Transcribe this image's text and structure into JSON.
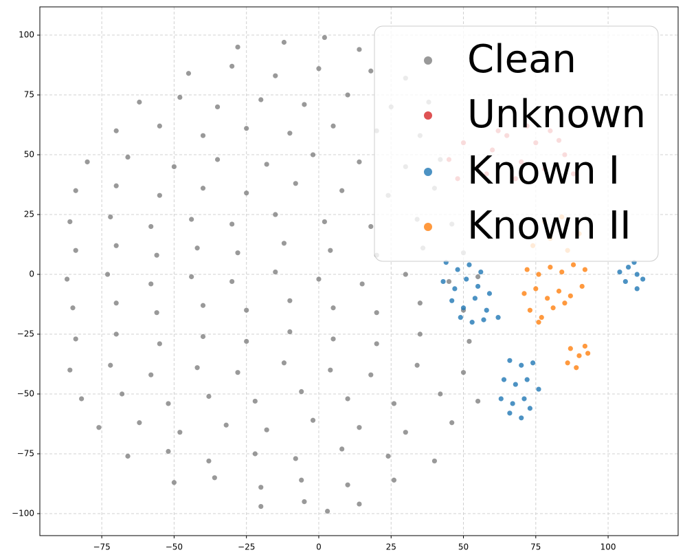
{
  "chart_data": {
    "type": "scatter",
    "xlim": [
      -96.4,
      124.2
    ],
    "ylim": [
      -109.2,
      111.8
    ],
    "xticks": [
      {
        "value": -75,
        "label": "−75"
      },
      {
        "value": -50,
        "label": "−50"
      },
      {
        "value": -25,
        "label": "−25"
      },
      0,
      25,
      50,
      75,
      100
    ],
    "yticks": [
      {
        "value": -100,
        "label": "−100"
      },
      {
        "value": -75,
        "label": "−75"
      },
      {
        "value": -50,
        "label": "−50"
      },
      {
        "value": -25,
        "label": "−25"
      },
      0,
      25,
      50,
      75,
      100
    ],
    "grid": true,
    "legend": "upper right",
    "series": [
      {
        "name": "Clean",
        "color": "#808080",
        "x": [
          -28,
          -12,
          2,
          14,
          -45,
          -30,
          -15,
          0,
          18,
          30,
          -62,
          -48,
          -35,
          -20,
          -5,
          10,
          25,
          38,
          -70,
          -55,
          -40,
          -25,
          -10,
          5,
          20,
          35,
          -80,
          -66,
          -50,
          -35,
          -18,
          -2,
          14,
          30,
          42,
          -84,
          -70,
          -55,
          -40,
          -25,
          -8,
          8,
          24,
          40,
          -86,
          -72,
          -58,
          -44,
          -30,
          -15,
          2,
          18,
          34,
          46,
          -84,
          -70,
          -56,
          -42,
          -28,
          -12,
          4,
          20,
          36,
          50,
          -87,
          -73,
          -58,
          -44,
          -30,
          -15,
          0,
          15,
          30,
          45,
          55,
          -85,
          -70,
          -56,
          -40,
          -25,
          -10,
          5,
          20,
          35,
          50,
          -84,
          -70,
          -55,
          -40,
          -25,
          -10,
          5,
          20,
          35,
          52,
          -86,
          -72,
          -58,
          -42,
          -28,
          -12,
          4,
          18,
          34,
          50,
          -82,
          -68,
          -52,
          -38,
          -22,
          -6,
          10,
          26,
          42,
          55,
          -76,
          -62,
          -48,
          -32,
          -18,
          -2,
          14,
          30,
          46,
          -66,
          -52,
          -38,
          -22,
          -8,
          8,
          24,
          40,
          -50,
          -36,
          -20,
          -6,
          10,
          26,
          -20,
          -5,
          3,
          14
        ],
        "y": [
          95,
          97,
          99,
          94,
          84,
          87,
          83,
          86,
          85,
          82,
          72,
          74,
          70,
          73,
          71,
          75,
          70,
          72,
          60,
          62,
          58,
          61,
          59,
          62,
          60,
          58,
          47,
          49,
          45,
          48,
          46,
          50,
          47,
          45,
          48,
          35,
          37,
          33,
          36,
          34,
          38,
          35,
          33,
          36,
          22,
          24,
          20,
          23,
          21,
          25,
          22,
          20,
          23,
          21,
          10,
          12,
          8,
          11,
          9,
          13,
          10,
          8,
          11,
          9,
          -2,
          0,
          -4,
          -1,
          -3,
          1,
          -2,
          -4,
          0,
          -3,
          -1,
          -14,
          -12,
          -16,
          -13,
          -15,
          -11,
          -14,
          -16,
          -12,
          -15,
          -27,
          -25,
          -29,
          -26,
          -28,
          -24,
          -27,
          -29,
          -25,
          -28,
          -40,
          -38,
          -42,
          -39,
          -41,
          -37,
          -40,
          -42,
          -38,
          -41,
          -52,
          -50,
          -54,
          -51,
          -53,
          -49,
          -52,
          -54,
          -50,
          -53,
          -64,
          -62,
          -66,
          -63,
          -65,
          -61,
          -64,
          -66,
          -62,
          -76,
          -74,
          -78,
          -75,
          -77,
          -73,
          -76,
          -78,
          -87,
          -85,
          -89,
          -86,
          -88,
          -86,
          -97,
          -95,
          -99,
          -96
        ]
      },
      {
        "name": "Unknown",
        "color": "#d62728",
        "x": [
          45,
          50,
          55,
          60,
          65,
          70,
          75,
          80,
          85,
          88,
          48,
          58,
          68,
          78,
          83,
          62,
          72
        ],
        "y": [
          48,
          55,
          45,
          52,
          58,
          47,
          55,
          60,
          50,
          42,
          40,
          42,
          40,
          44,
          56,
          60,
          62
        ]
      },
      {
        "name": "Known I",
        "color": "#1f77b4",
        "x": [
          44,
          48,
          52,
          56,
          43,
          47,
          51,
          55,
          59,
          46,
          50,
          54,
          58,
          62,
          49,
          53,
          57,
          66,
          70,
          74,
          64,
          68,
          72,
          76,
          63,
          67,
          71,
          66,
          70,
          73,
          104,
          107,
          110,
          112,
          109,
          106,
          110
        ],
        "y": [
          5,
          2,
          4,
          1,
          -3,
          -6,
          -2,
          -5,
          -8,
          -11,
          -14,
          -10,
          -15,
          -18,
          -18,
          -20,
          -19,
          -36,
          -38,
          -37,
          -44,
          -46,
          -44,
          -48,
          -52,
          -54,
          -52,
          -58,
          -60,
          -56,
          1,
          3,
          0,
          -2,
          5,
          -3,
          -6
        ]
      },
      {
        "name": "Known II",
        "color": "#ff7f0e",
        "x": [
          72,
          76,
          80,
          84,
          88,
          92,
          71,
          75,
          79,
          83,
          87,
          91,
          73,
          77,
          81,
          85,
          76,
          74,
          80,
          86,
          90,
          78,
          84,
          87,
          90,
          92,
          86,
          89,
          93
        ],
        "y": [
          2,
          0,
          3,
          1,
          4,
          2,
          -8,
          -6,
          -10,
          -7,
          -9,
          -5,
          -15,
          -18,
          -14,
          -12,
          -20,
          12,
          15,
          10,
          17,
          22,
          24,
          -31,
          -34,
          -30,
          -37,
          -39,
          -33
        ]
      }
    ]
  }
}
